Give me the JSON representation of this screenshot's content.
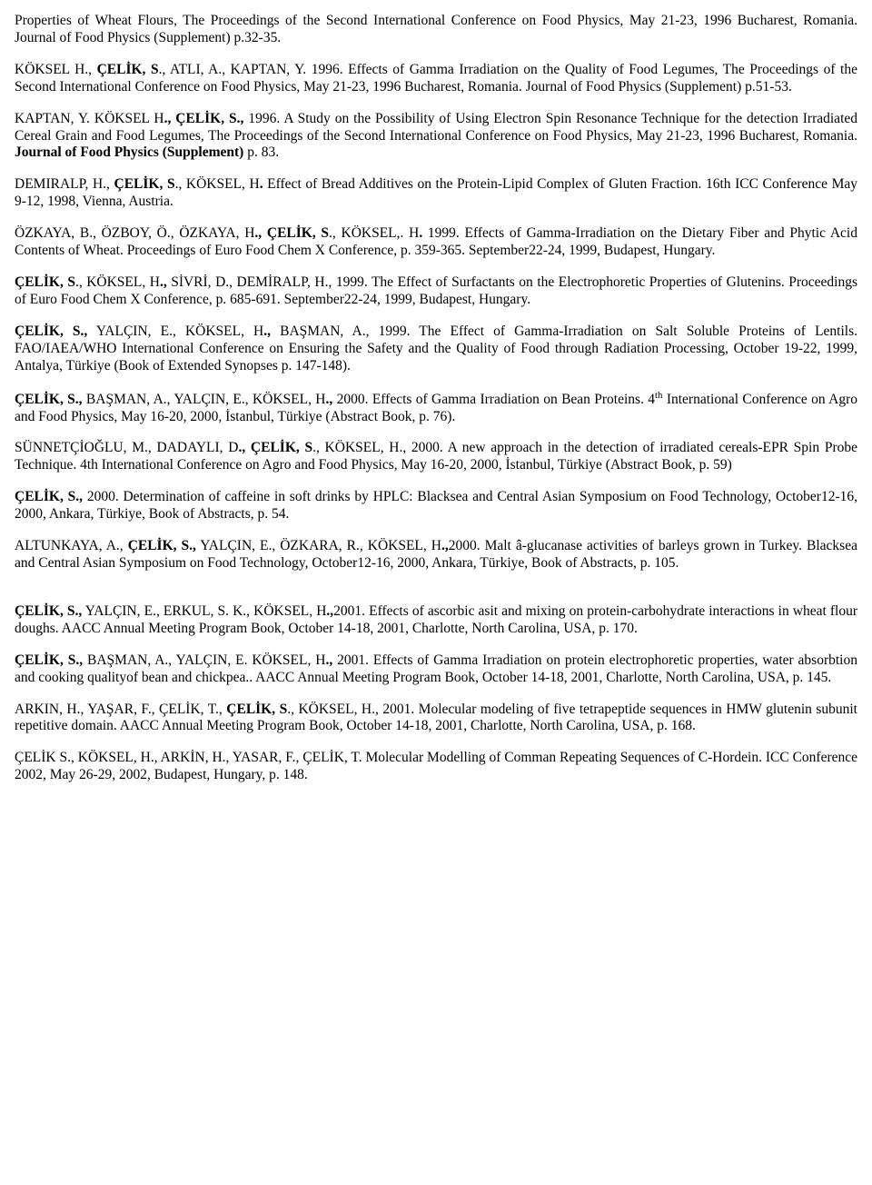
{
  "references": [
    {
      "html": "Properties of Wheat Flours, The Proceedings of the Second International Conference on Food Physics, May 21-23, 1996 Bucharest, Romania. Journal of Food Physics (Supplement) p.32-35."
    },
    {
      "html": "KÖKSEL H., <b>ÇELİK, S</b>., ATLI, A., KAPTAN, Y. 1996. Effects of Gamma Irradiation on the Quality of Food Legumes, The Proceedings of the Second International Conference on Food Physics, May 21-23, 1996 Bucharest, Romania. Journal of Food Physics (Supplement) p.51-53."
    },
    {
      "html": "KAPTAN, Y. KÖKSEL H<b>., ÇELİK, S.,</b> 1996. A Study on the Possibility of Using Electron Spin Resonance Technique for the detection Irradiated Cereal Grain and Food Legumes, The Proceedings of the Second International Conference on Food Physics, May 21-23, 1996 Bucharest, Romania. <b>Journal of Food Physics (Supplement)</b> p. 83."
    },
    {
      "html": "DEMIRALP, H., <b>ÇELİK, S</b>., KÖKSEL, H<b>.</b> Effect of Bread Additives on the Protein-Lipid Complex of Gluten Fraction. 16th ICC Conference May 9-12, 1998, Vienna, Austria."
    },
    {
      "html": "ÖZKAYA, B., ÖZBOY, Ö., ÖZKAYA, H<b>., ÇELİK, S</b>., KÖKSEL,. H<b>.</b> 1999. Effects of Gamma-Irradiation on the Dietary Fiber and Phytic Acid Contents of Wheat. Proceedings of Euro Food Chem X Conference, p. 359-365. September22-24, 1999, Budapest, Hungary."
    },
    {
      "html": "<b>ÇELİK, S</b>., KÖKSEL, H<b>.,</b> SİVRİ, D., DEMİRALP, H., 1999. The Effect of Surfactants on the Electrophoretic Properties of Glutenins. Proceedings of Euro Food Chem X Conference, p. 685-691. September22-24, 1999, Budapest, Hungary."
    },
    {
      "html": "<b>ÇELİK, S.,</b> YALÇIN, E., KÖKSEL, H<b>.,</b> BAŞMAN, A., 1999. The Effect of Gamma-Irradiation on Salt Soluble Proteins of Lentils. FAO/IAEA/WHO International Conference on Ensuring the Safety and the Quality of Food through Radiation Processing, October 19-22, 1999, Antalya, Türkiye (Book of Extended Synopses p. 147-148)."
    },
    {
      "html": "<b>ÇELİK, S.,</b> BAŞMAN, A., YALÇIN, E., KÖKSEL, H<b>.,</b> 2000. Effects of Gamma Irradiation on Bean Proteins. 4<sup>th</sup> International Conference on Agro and Food Physics, May 16-20, 2000, İstanbul, Türkiye (Abstract Book, p. 76)."
    },
    {
      "html": "SÜNNETÇİOĞLU, M., DADAYLI, D<b>., ÇELİK, S</b>., KÖKSEL, H., 2000. A new approach in the detection of irradiated cereals-EPR Spin Probe Technique. 4th International Conference on Agro and Food Physics, May 16-20, 2000, İstanbul, Türkiye (Abstract Book, p. 59)"
    },
    {
      "html": "<b>ÇELİK, S.,</b> 2000. Determination of caffeine in soft drinks by HPLC: Blacksea and Central Asian Symposium on Food Technology, October12-16, 2000, Ankara, Türkiye, Book of Abstracts, p. 54."
    },
    {
      "html": "ALTUNKAYA, A., <b>ÇELİK, S.,</b> YALÇIN, E., ÖZKARA, R., KÖKSEL, H<b>.,</b>2000. Malt â-glucanase activities of barleys grown in Turkey. Blacksea and Central Asian Symposium on Food Technology, October12-16, 2000, Ankara, Türkiye, Book of Abstracts, p. 105.",
      "gapAfter": true
    },
    {
      "html": "<b>ÇELİK, S.,</b> YALÇIN, E., ERKUL, S. K., KÖKSEL, H<b>.,</b>2001. Effects of ascorbic asit and mixing on protein-carbohydrate interactions in wheat flour doughs. AACC Annual Meeting Program Book, October 14-18, 2001, Charlotte, North Carolina, USA, p. 170."
    },
    {
      "html": "<b>ÇELİK, S.,</b> BAŞMAN, A., YALÇIN, E. KÖKSEL, H<b>.,</b> 2001. Effects of Gamma Irradiation on protein electrophoretic properties, water absorbtion and cooking qualityof bean and chickpea.. AACC Annual Meeting Program Book, October 14-18, 2001, Charlotte, North Carolina, USA, p. 145."
    },
    {
      "html": "ARKIN, H., YAŞAR, F., ÇELİK, T., <b>ÇELİK, S</b>., KÖKSEL, H., 2001. Molecular modeling of five tetrapeptide sequences in HMW glutenin subunit repetitive domain. AACC Annual Meeting Program Book, October 14-18, 2001, Charlotte, North Carolina, USA, p. 168."
    },
    {
      "html": "ÇELİK S., KÖKSEL, H., ARKİN, H., YASAR, F., ÇELİK, T. Molecular Modelling of Comman Repeating Sequences of C-Hordein. ICC Conference 2002, May 26-29, 2002, Budapest, Hungary, p. 148."
    }
  ]
}
